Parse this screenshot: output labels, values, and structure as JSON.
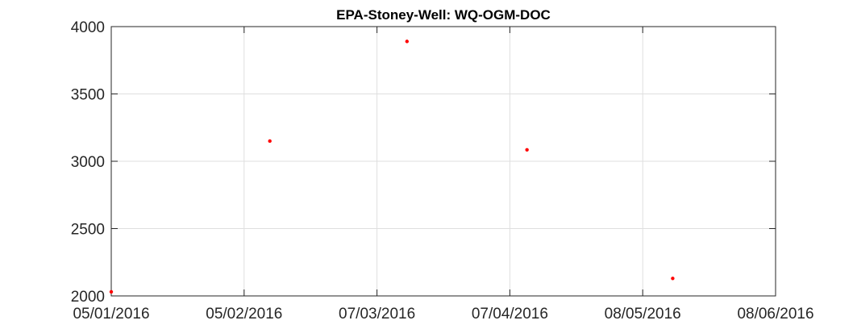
{
  "chart_data": {
    "type": "scatter",
    "title": "EPA-Stoney-Well: WQ-OGM-DOC",
    "xlabel": "",
    "ylabel": "",
    "x_ticks": [
      "05/01/2016",
      "05/02/2016",
      "07/03/2016",
      "07/04/2016",
      "08/05/2016",
      "08/06/2016"
    ],
    "x_tick_values": [
      "2016-01-05",
      "2016-02-05",
      "2016-03-07",
      "2016-04-07",
      "2016-05-08",
      "2016-06-08"
    ],
    "xlim": [
      "2016-01-05",
      "2016-06-08"
    ],
    "y_ticks": [
      "2000",
      "2500",
      "3000",
      "3500",
      "4000"
    ],
    "y_tick_values": [
      2000,
      2500,
      3000,
      3500,
      4000
    ],
    "ylim": [
      2000,
      4000
    ],
    "grid": true,
    "marker_color": "#ff0000",
    "series": [
      {
        "x": [
          "2016-01-05",
          "2016-02-11",
          "2016-03-14",
          "2016-04-11",
          "2016-05-15"
        ],
        "y": [
          2030,
          3150,
          3890,
          3085,
          2130
        ]
      }
    ]
  }
}
